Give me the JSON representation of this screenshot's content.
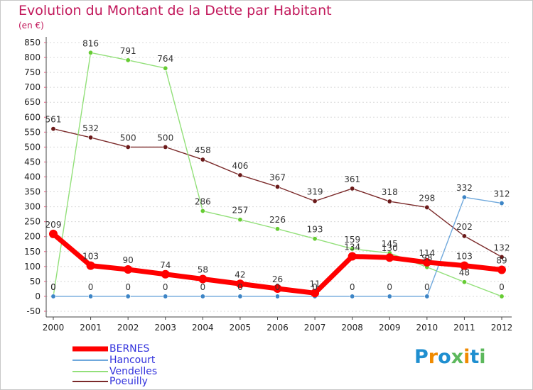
{
  "title": "Evolution du Montant de la Dette par Habitant",
  "subtitle": "(en €)",
  "brand": {
    "letters": [
      "P",
      "r",
      "o",
      "x",
      "i",
      "t",
      "i"
    ],
    "colors": [
      "#1f8fd0",
      "#f08a00",
      "#1f8fd0",
      "#5cb85c",
      "#f08a00",
      "#1f8fd0",
      "#5cb85c"
    ]
  },
  "chart_data": {
    "type": "line",
    "x": [
      "2000",
      "2001",
      "2002",
      "2003",
      "2004",
      "2005",
      "2006",
      "2007",
      "2008",
      "2009",
      "2010",
      "2011",
      "2012"
    ],
    "ylim": [
      -50,
      850
    ],
    "yticks": [
      "-50",
      "0",
      "50",
      "100",
      "150",
      "200",
      "250",
      "300",
      "350",
      "400",
      "450",
      "500",
      "550",
      "600",
      "650",
      "700",
      "750",
      "800",
      "850"
    ],
    "grid": "horizontal dotted",
    "legend_position": "bottom-left",
    "series": [
      {
        "name": "BERNES",
        "color": "#ff0000",
        "marker": "#ff0000",
        "width": 7,
        "values": [
          209,
          103,
          90,
          74,
          58,
          42,
          26,
          11,
          134,
          130,
          114,
          103,
          89
        ],
        "labels": [
          "209",
          "103",
          "90",
          "74",
          "58",
          "42",
          "26",
          "11",
          "134",
          "130",
          "114",
          "103",
          "89"
        ]
      },
      {
        "name": "Hancourt",
        "color": "#6fa8dc",
        "marker": "#3d85c6",
        "width": 1.4,
        "values": [
          0,
          0,
          0,
          0,
          0,
          0,
          0,
          0,
          0,
          0,
          0,
          332,
          312
        ],
        "labels": [
          "0",
          "0",
          "0",
          "0",
          "0",
          "0",
          "0",
          "0",
          "0",
          "0",
          "0",
          "332",
          "312"
        ]
      },
      {
        "name": "Vendelles",
        "color": "#93e07a",
        "marker": "#66cc33",
        "width": 1.4,
        "values": [
          0,
          816,
          791,
          764,
          286,
          257,
          226,
          193,
          159,
          145,
          98,
          48,
          0
        ],
        "labels": [
          "0",
          "816",
          "791",
          "764",
          "286",
          "257",
          "226",
          "193",
          "159",
          "145",
          "98",
          "48",
          "0"
        ]
      },
      {
        "name": "Poeuilly",
        "color": "#7b2a2a",
        "marker": "#6b1a1a",
        "width": 1.4,
        "values": [
          561,
          532,
          500,
          500,
          458,
          406,
          367,
          319,
          361,
          318,
          298,
          202,
          132
        ],
        "labels": [
          "561",
          "532",
          "500",
          "500",
          "458",
          "406",
          "367",
          "319",
          "361",
          "318",
          "298",
          "202",
          "132"
        ]
      }
    ]
  }
}
